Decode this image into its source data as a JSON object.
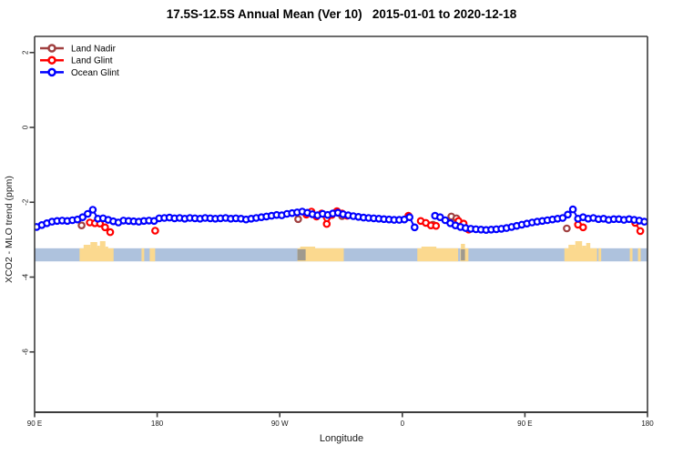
{
  "title": "17.5S-12.5S Annual Mean (Ver 10)   2015-01-01 to 2020-12-18",
  "legend": {
    "items": [
      {
        "label": "Land Nadir",
        "color": "#A04040"
      },
      {
        "label": "Land Glint",
        "color": "#FF0000"
      },
      {
        "label": "Ocean Glint",
        "color": "#0000FF"
      }
    ]
  },
  "chart_data": {
    "type": "scatter",
    "title": "17.5S-12.5S Annual Mean (Ver 10)   2015-01-01 to 2020-12-18",
    "xlabel": "Longitude",
    "ylabel": "XCO2 - MLO trend (ppm)",
    "x_axis": {
      "tick_positions_deg": [
        0,
        90,
        180,
        270,
        360,
        450
      ],
      "tick_labels": [
        "90 E",
        "180",
        "90 W",
        "0",
        "90 E",
        "180"
      ],
      "note": "axis position = degrees eastward from 90E; axis wraps 90E > 180 > 90W > 0 > 90E > 180",
      "range_deg": [
        0,
        450
      ]
    },
    "y_axis": {
      "ticks": [
        2,
        0,
        -2,
        -4,
        -6
      ],
      "range": [
        -7.6,
        2.4
      ],
      "grid": false
    },
    "series": [
      {
        "name": "Land Nadir",
        "color": "#A04040",
        "marker": "open-circle",
        "points": [
          [
            34.5,
            -2.62
          ],
          [
            193.5,
            -2.45
          ],
          [
            225.75,
            -2.37
          ],
          [
            292.5,
            -2.6
          ],
          [
            306,
            -2.38
          ],
          [
            309.75,
            -2.43
          ],
          [
            390.75,
            -2.7
          ]
        ]
      },
      {
        "name": "Land Glint",
        "color": "#FF0000",
        "marker": "open-circle",
        "points": [
          [
            40.5,
            -2.54
          ],
          [
            44.25,
            -2.56
          ],
          [
            48,
            -2.57
          ],
          [
            51.75,
            -2.67
          ],
          [
            55.5,
            -2.8
          ],
          [
            88.5,
            -2.76
          ],
          [
            199.5,
            -2.33
          ],
          [
            203.25,
            -2.25
          ],
          [
            207,
            -2.38
          ],
          [
            210.75,
            -2.3
          ],
          [
            214.5,
            -2.58
          ],
          [
            218.25,
            -2.34
          ],
          [
            222,
            -2.24
          ],
          [
            225.75,
            -2.3
          ],
          [
            229.5,
            -2.36
          ],
          [
            274.5,
            -2.36
          ],
          [
            283.5,
            -2.5
          ],
          [
            287.25,
            -2.55
          ],
          [
            291,
            -2.62
          ],
          [
            294.75,
            -2.63
          ],
          [
            311.25,
            -2.5
          ],
          [
            315,
            -2.57
          ],
          [
            318.75,
            -2.73
          ],
          [
            399,
            -2.6
          ],
          [
            402.75,
            -2.67
          ],
          [
            441,
            -2.55
          ],
          [
            444.75,
            -2.77
          ]
        ]
      },
      {
        "name": "Ocean Glint",
        "color": "#0000FF",
        "marker": "open-circle",
        "points": [
          [
            1.5,
            -2.66
          ],
          [
            5.25,
            -2.61
          ],
          [
            9,
            -2.56
          ],
          [
            12.75,
            -2.52
          ],
          [
            16.5,
            -2.5
          ],
          [
            20.25,
            -2.49
          ],
          [
            24,
            -2.5
          ],
          [
            27.75,
            -2.48
          ],
          [
            31.5,
            -2.46
          ],
          [
            35.25,
            -2.4
          ],
          [
            39,
            -2.31
          ],
          [
            42.75,
            -2.2
          ],
          [
            46.5,
            -2.44
          ],
          [
            50.25,
            -2.43
          ],
          [
            54,
            -2.47
          ],
          [
            57.75,
            -2.51
          ],
          [
            61.5,
            -2.54
          ],
          [
            65.25,
            -2.49
          ],
          [
            69,
            -2.5
          ],
          [
            72.75,
            -2.51
          ],
          [
            76.5,
            -2.52
          ],
          [
            80.25,
            -2.5
          ],
          [
            84,
            -2.49
          ],
          [
            87.75,
            -2.5
          ],
          [
            91.5,
            -2.43
          ],
          [
            95.25,
            -2.42
          ],
          [
            99,
            -2.41
          ],
          [
            102.75,
            -2.43
          ],
          [
            106.5,
            -2.42
          ],
          [
            110.25,
            -2.44
          ],
          [
            114,
            -2.42
          ],
          [
            117.75,
            -2.43
          ],
          [
            121.5,
            -2.44
          ],
          [
            125.25,
            -2.42
          ],
          [
            129,
            -2.43
          ],
          [
            132.75,
            -2.44
          ],
          [
            136.5,
            -2.43
          ],
          [
            140.25,
            -2.42
          ],
          [
            144,
            -2.44
          ],
          [
            147.75,
            -2.43
          ],
          [
            151.5,
            -2.44
          ],
          [
            155.25,
            -2.46
          ],
          [
            159,
            -2.44
          ],
          [
            162.75,
            -2.42
          ],
          [
            166.5,
            -2.4
          ],
          [
            170.25,
            -2.38
          ],
          [
            174,
            -2.36
          ],
          [
            177.75,
            -2.34
          ],
          [
            181.5,
            -2.35
          ],
          [
            185.25,
            -2.31
          ],
          [
            189,
            -2.29
          ],
          [
            192.75,
            -2.27
          ],
          [
            196.5,
            -2.25
          ],
          [
            200.25,
            -2.28
          ],
          [
            204,
            -2.32
          ],
          [
            207.75,
            -2.35
          ],
          [
            211.5,
            -2.31
          ],
          [
            215.25,
            -2.34
          ],
          [
            219,
            -2.3
          ],
          [
            222.75,
            -2.28
          ],
          [
            226.5,
            -2.32
          ],
          [
            230.25,
            -2.35
          ],
          [
            234,
            -2.37
          ],
          [
            237.75,
            -2.39
          ],
          [
            241.5,
            -2.41
          ],
          [
            245.25,
            -2.42
          ],
          [
            249,
            -2.43
          ],
          [
            252.75,
            -2.44
          ],
          [
            256.5,
            -2.45
          ],
          [
            260.25,
            -2.46
          ],
          [
            264,
            -2.47
          ],
          [
            267.75,
            -2.47
          ],
          [
            271.5,
            -2.46
          ],
          [
            275.25,
            -2.4
          ],
          [
            279,
            -2.67
          ],
          [
            294,
            -2.36
          ],
          [
            297.75,
            -2.4
          ],
          [
            301.5,
            -2.48
          ],
          [
            305.25,
            -2.56
          ],
          [
            309,
            -2.62
          ],
          [
            312.75,
            -2.66
          ],
          [
            316.5,
            -2.69
          ],
          [
            320.25,
            -2.71
          ],
          [
            324,
            -2.72
          ],
          [
            327.75,
            -2.73
          ],
          [
            331.5,
            -2.74
          ],
          [
            335.25,
            -2.73
          ],
          [
            339,
            -2.72
          ],
          [
            342.75,
            -2.71
          ],
          [
            346.5,
            -2.69
          ],
          [
            350.25,
            -2.66
          ],
          [
            354,
            -2.63
          ],
          [
            357.75,
            -2.6
          ],
          [
            361.5,
            -2.57
          ],
          [
            365.25,
            -2.54
          ],
          [
            369,
            -2.52
          ],
          [
            372.75,
            -2.5
          ],
          [
            376.5,
            -2.48
          ],
          [
            380.25,
            -2.46
          ],
          [
            384,
            -2.44
          ],
          [
            387.75,
            -2.42
          ],
          [
            391.5,
            -2.33
          ],
          [
            395.25,
            -2.19
          ],
          [
            399,
            -2.44
          ],
          [
            402.75,
            -2.4
          ],
          [
            406.5,
            -2.44
          ],
          [
            410.25,
            -2.42
          ],
          [
            414,
            -2.45
          ],
          [
            417.75,
            -2.44
          ],
          [
            421.5,
            -2.47
          ],
          [
            425.25,
            -2.45
          ],
          [
            429,
            -2.45
          ],
          [
            432.75,
            -2.47
          ],
          [
            436.5,
            -2.45
          ],
          [
            440.25,
            -2.47
          ],
          [
            444,
            -2.49
          ],
          [
            447.75,
            -2.52
          ]
        ]
      }
    ],
    "map_strip": {
      "description": "land/ocean map band along latitude 17.5S-12.5S",
      "ocean_color": "#AEC2DD",
      "land_color": "#FBD98F",
      "shade_color": "#8E8E8E",
      "band_value_top": -3.23,
      "band_value_bottom": -3.58,
      "land_segments": [
        {
          "name": "australia-1",
          "from": 33,
          "to": 58,
          "bumps": [
            [
              36,
              41,
              269
            ],
            [
              41,
              46,
              266
            ],
            [
              46,
              48,
              270
            ],
            [
              48,
              52,
              265
            ],
            [
              52,
              54,
              271
            ]
          ],
          "shade": []
        },
        {
          "name": "pacific-islands-1a",
          "from": 78.5,
          "to": 80.5,
          "bumps": [],
          "shade": []
        },
        {
          "name": "pacific-islands-1b",
          "from": 84.5,
          "to": 88.5,
          "bumps": [],
          "shade": []
        },
        {
          "name": "south-america",
          "from": 193,
          "to": 227,
          "bumps": [
            [
              195,
              206,
              271
            ]
          ],
          "shade": [
            [
              193,
              199
            ]
          ]
        },
        {
          "name": "africa",
          "from": 281,
          "to": 311,
          "bumps": [
            [
              284,
              295,
              271
            ]
          ],
          "shade": []
        },
        {
          "name": "madagascar",
          "from": 312.5,
          "to": 318.5,
          "bumps": [
            [
              313,
              316,
              268
            ]
          ],
          "shade": [
            [
              313,
              316
            ]
          ]
        },
        {
          "name": "australia-2",
          "from": 389,
          "to": 413,
          "bumps": [
            [
              392,
              397,
              269
            ],
            [
              397,
              402,
              265
            ],
            [
              402,
              405,
              270
            ],
            [
              405,
              408,
              267
            ]
          ],
          "shade": []
        },
        {
          "name": "australia-2-sliver",
          "from": 414,
          "to": 416,
          "bumps": [],
          "shade": []
        },
        {
          "name": "pacific-islands-2a",
          "from": 437,
          "to": 439,
          "bumps": [],
          "shade": []
        },
        {
          "name": "pacific-islands-2b",
          "from": 443,
          "to": 445,
          "bumps": [],
          "shade": []
        }
      ]
    }
  }
}
